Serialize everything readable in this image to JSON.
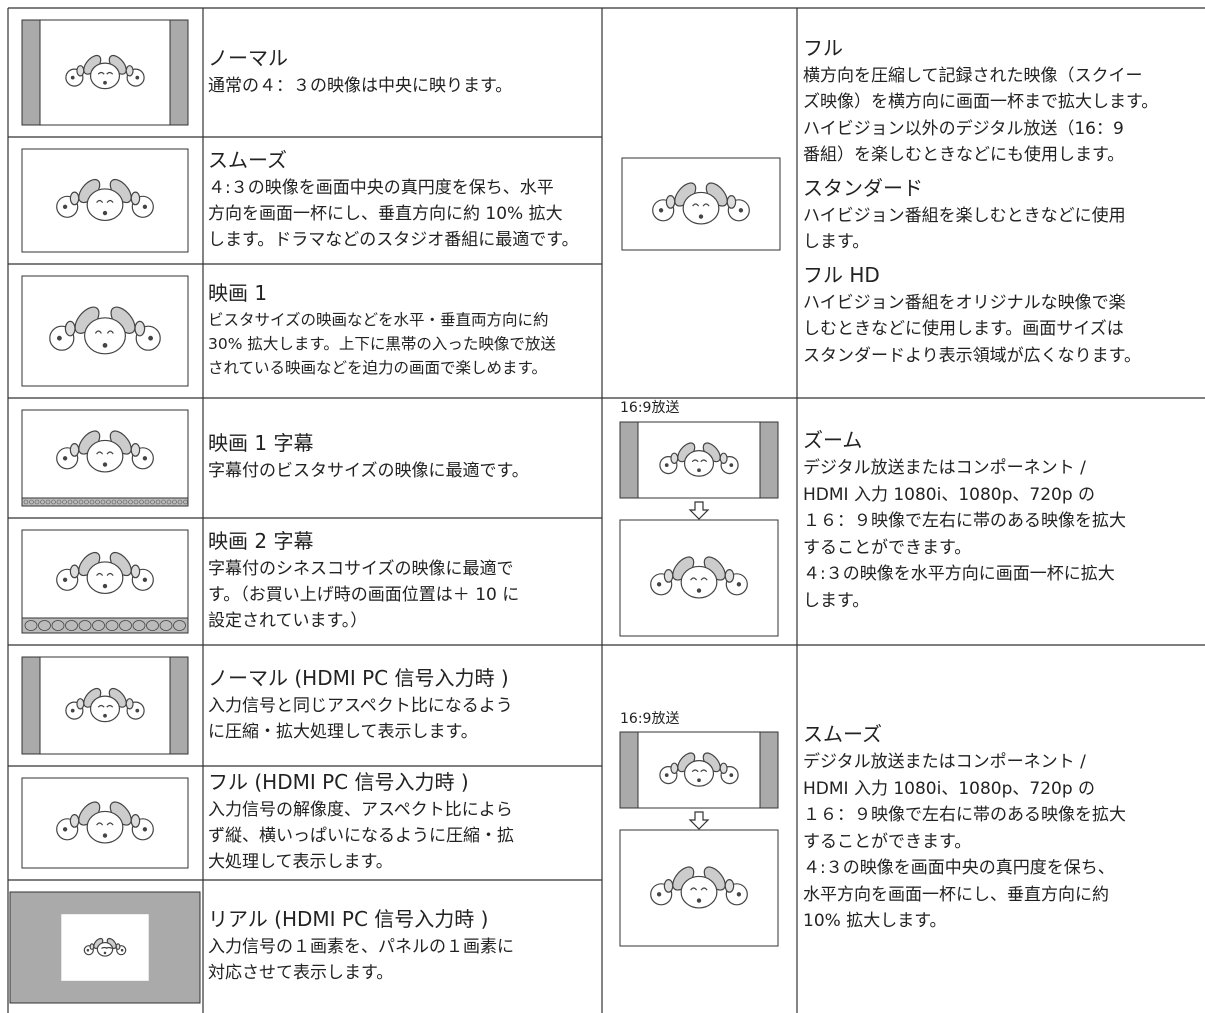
{
  "left_rows": [
    {
      "title": "ノーマル",
      "description": [
        "通常の４：３の映像は中央に映ります。"
      ]
    },
    {
      "title": "スムーズ",
      "description": [
        "４:３の映像を画面中央の真円度を保ち、水平",
        "方向を画面一杯にし、垂直方向に約 10% 拡大",
        "します。ドラマなどのスタジオ番組に最適です。"
      ]
    },
    {
      "title": "映画 1",
      "description": [
        "ビスタサイズの映画などを水平・垂直両方向に約",
        "30% 拡大します。上下に黒帯の入った映像で放送",
        "されている映画などを迫力の画面で楽しめます。"
      ]
    },
    {
      "title": "映画 1 字幕",
      "description": [
        "字幕付のビスタサイズの映像に最適です。"
      ]
    },
    {
      "title": "映画 2 字幕",
      "description": [
        "字幕付のシネスコサイズの映像に最適で",
        "す。（お買い上げ時の画面位置は＋ 10 に",
        "設定されています。）"
      ]
    },
    {
      "title": "ノーマル (HDMI PC 信号入力時 )",
      "description": [
        "入力信号と同じアスペクト比になるよう",
        "に圧縮・拡大処理して表示します。"
      ]
    },
    {
      "title": "フル (HDMI PC 信号入力時 )",
      "description": [
        "入力信号の解像度、アスペクト比によら",
        "ず縦、横いっぱいになるように圧縮・拡",
        "大処理して表示します。"
      ]
    },
    {
      "title": "リアル (HDMI PC 信号入力時 )",
      "description": [
        "入力信号の１画素を、パネルの１画素に",
        "対応させて表示します。"
      ]
    }
  ],
  "right_groups": [
    {
      "items": [
        {
          "title": "フル",
          "description": [
            "横方向を圧縮して記録された映像（スクイー",
            "ズ映像）を横方向に画面一杯まで拡大します。",
            "ハイビジョン以外のデジタル放送（16：9",
            "番組）を楽しむときなどにも使用します。"
          ]
        },
        {
          "title": "スタンダード",
          "description": [
            "ハイビジョン番組を楽しむときなどに使用",
            "します。"
          ]
        },
        {
          "title": "フル HD",
          "description": [
            "ハイビジョン番組をオリジナルな映像で楽",
            "しむときなどに使用します。画面サイズは",
            "スタンダードより表示領域が広くなります。"
          ]
        }
      ]
    },
    {
      "broadcast_label": "16:9放送",
      "items": [
        {
          "title": "ズーム",
          "description": [
            "デジタル放送またはコンポーネント /",
            "HDMI 入力 1080i、1080p、720p の",
            "１６：９映像で左右に帯のある映像を拡大",
            "することができます。",
            "４:３の映像を水平方向に画面一杯に拡大",
            "します。"
          ]
        }
      ]
    },
    {
      "broadcast_label": "16:9放送",
      "items": [
        {
          "title": "スムーズ",
          "description": [
            "デジタル放送またはコンポーネント /",
            "HDMI 入力 1080i、1080p、720p の",
            "１６：９映像で左右に帯のある映像を拡大",
            "することができます。",
            "４:３の映像を画面中央の真円度を保ち、",
            "水平方向を画面一杯にし、垂直方向に約",
            "10% 拡大します。"
          ]
        }
      ]
    }
  ]
}
